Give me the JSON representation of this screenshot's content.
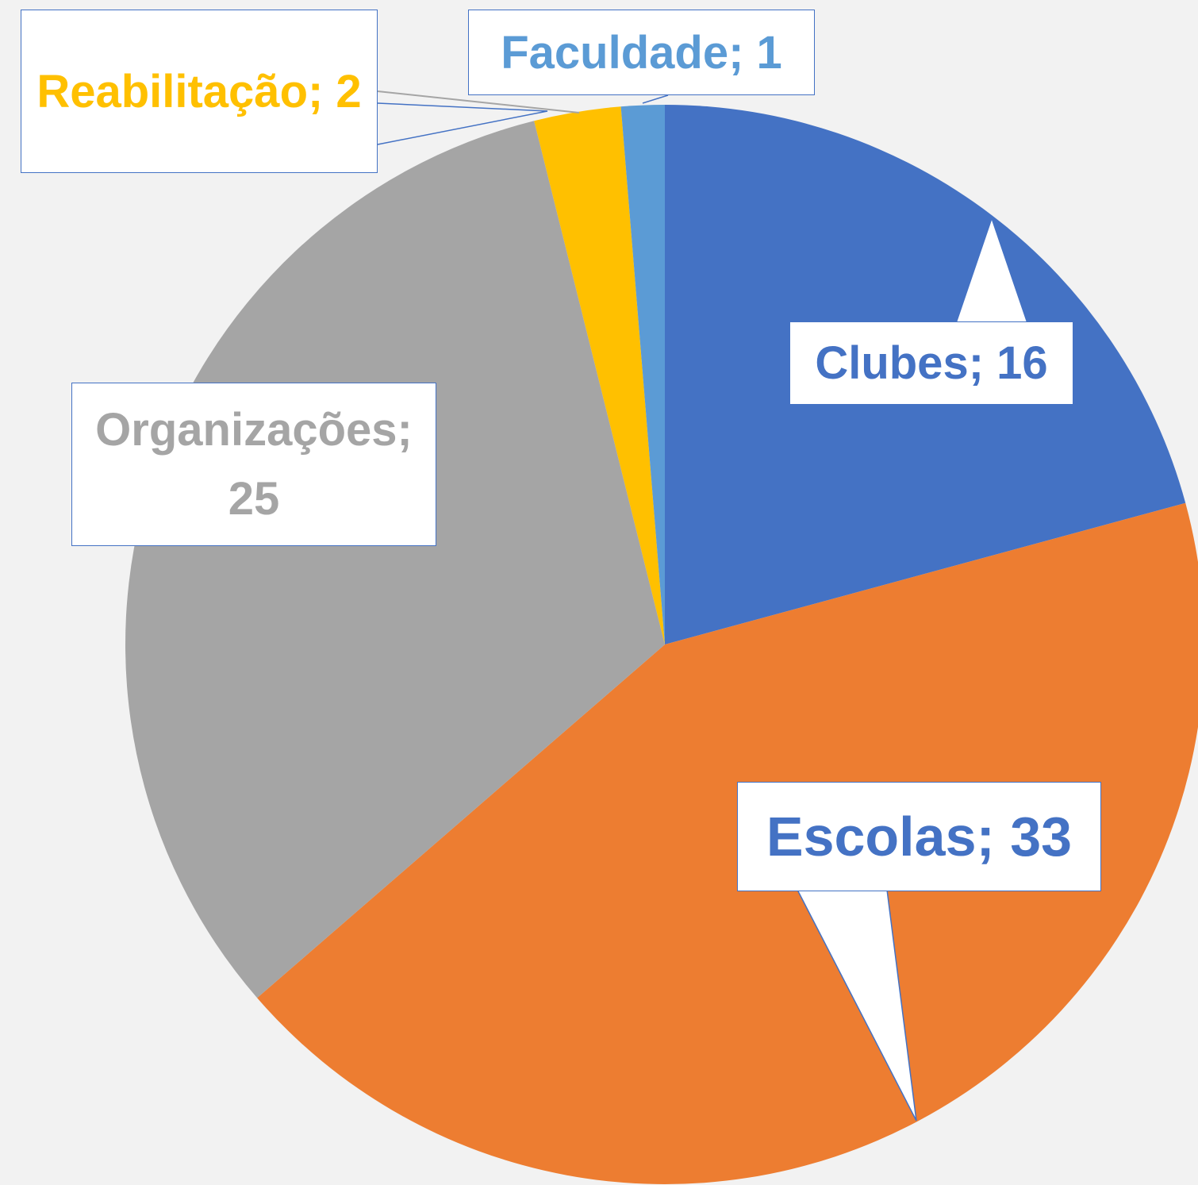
{
  "chart_data": {
    "type": "pie",
    "categories": [
      "Clubes",
      "Escolas",
      "Organizações",
      "Reabilitação",
      "Faculdade"
    ],
    "values": [
      16,
      33,
      25,
      2,
      1
    ],
    "value_labels": [
      "Clubes; 16",
      "Escolas; 33",
      "Organizações; 25",
      "Reabilitação; 2",
      "Faculdade; 1"
    ],
    "colors": [
      "#4472c4",
      "#ed7d31",
      "#a5a5a5",
      "#ffc000",
      "#5b9bd5"
    ],
    "label_colors": [
      "#4472c4",
      "#4472c4",
      "#a5a5a5",
      "#ffc000",
      "#5b9bd5"
    ]
  }
}
